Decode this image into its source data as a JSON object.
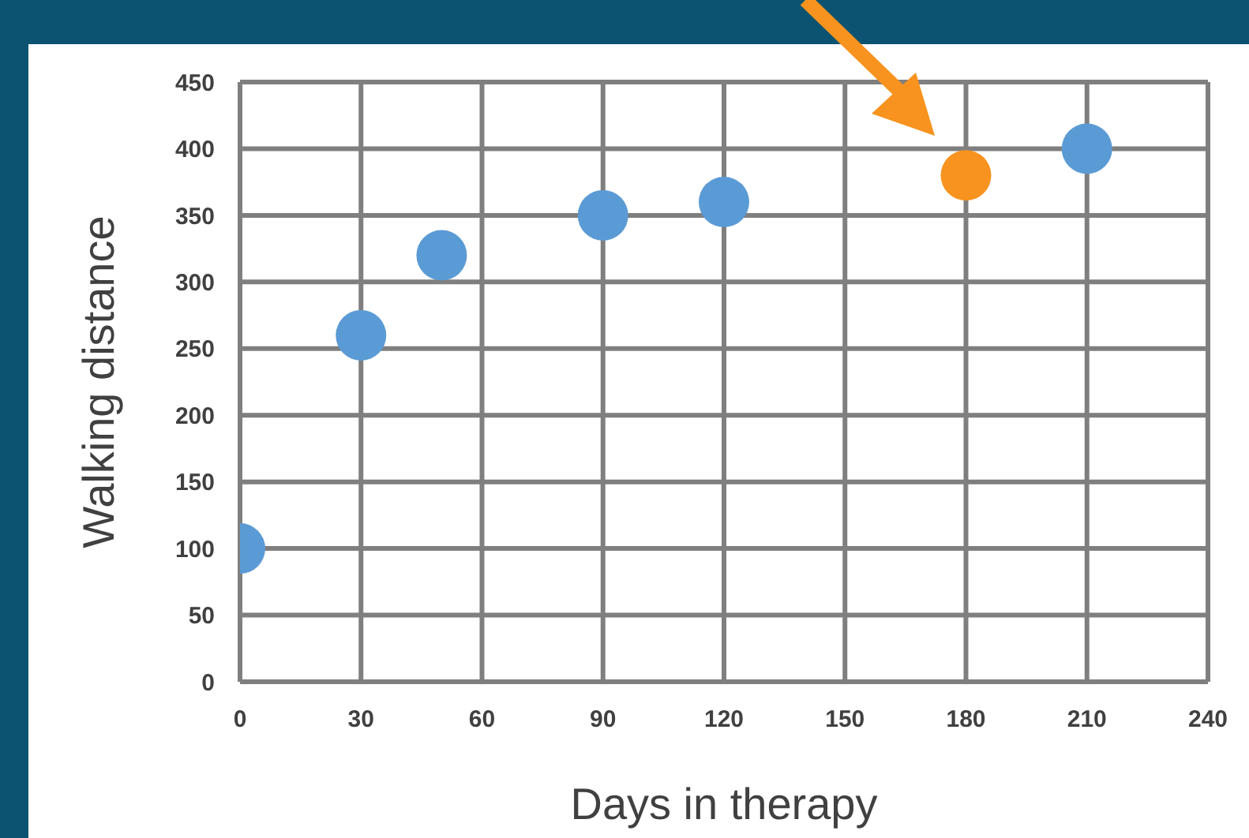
{
  "chart_data": {
    "type": "scatter",
    "xlabel": "Days in therapy",
    "ylabel": "Walking distance",
    "series": [
      {
        "color": "#5b9bd5",
        "x": [
          0,
          30,
          50,
          90,
          120,
          210
        ],
        "values": [
          100,
          260,
          320,
          350,
          360,
          400
        ]
      },
      {
        "color": "#f7931e",
        "x": [
          180
        ],
        "values": [
          380
        ]
      }
    ],
    "xlim": [
      0,
      240
    ],
    "xticks": [
      0,
      30,
      60,
      90,
      120,
      150,
      180,
      210,
      240
    ],
    "ylim": [
      0,
      450
    ],
    "yticks": [
      0,
      50,
      100,
      150,
      200,
      250,
      300,
      350,
      400,
      450
    ],
    "grid": true,
    "marker": "circle",
    "legend": false
  }
}
